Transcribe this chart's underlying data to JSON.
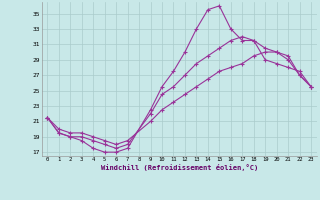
{
  "xlabel": "Windchill (Refroidissement éolien,°C)",
  "ylabel": "",
  "xlim": [
    -0.5,
    23.5
  ],
  "ylim": [
    16.5,
    36.5
  ],
  "xticks": [
    0,
    1,
    2,
    3,
    4,
    5,
    6,
    7,
    8,
    9,
    10,
    11,
    12,
    13,
    14,
    15,
    16,
    17,
    18,
    19,
    20,
    21,
    22,
    23
  ],
  "yticks": [
    17,
    19,
    21,
    23,
    25,
    27,
    29,
    31,
    33,
    35
  ],
  "bg_color": "#c8e8e8",
  "line_color": "#993399",
  "grid_color": "#aacccc",
  "series": [
    [
      21.5,
      19.5,
      19.0,
      18.5,
      17.5,
      17.0,
      17.0,
      17.5,
      22.5,
      25.5,
      27.5,
      30.0,
      33.0,
      35.5,
      36.0,
      33.0,
      31.5,
      31.5,
      30.5,
      30.0,
      29.5,
      27.0,
      25.5
    ],
    [
      21.5,
      19.5,
      19.0,
      19.0,
      18.5,
      18.0,
      17.5,
      18.0,
      22.0,
      24.5,
      25.5,
      27.0,
      28.5,
      29.5,
      30.5,
      31.5,
      32.0,
      31.5,
      29.0,
      28.5,
      28.0,
      27.5,
      25.5
    ],
    [
      21.5,
      20.0,
      19.5,
      19.5,
      19.0,
      18.5,
      18.0,
      18.5,
      21.0,
      22.5,
      23.5,
      24.5,
      25.5,
      26.5,
      27.5,
      28.0,
      28.5,
      29.5,
      30.0,
      30.0,
      29.0,
      27.0,
      25.5
    ]
  ],
  "x_values": [
    0,
    1,
    2,
    3,
    4,
    5,
    6,
    7,
    9,
    10,
    11,
    12,
    13,
    14,
    15,
    16,
    17,
    18,
    19,
    20,
    21,
    22,
    23
  ]
}
